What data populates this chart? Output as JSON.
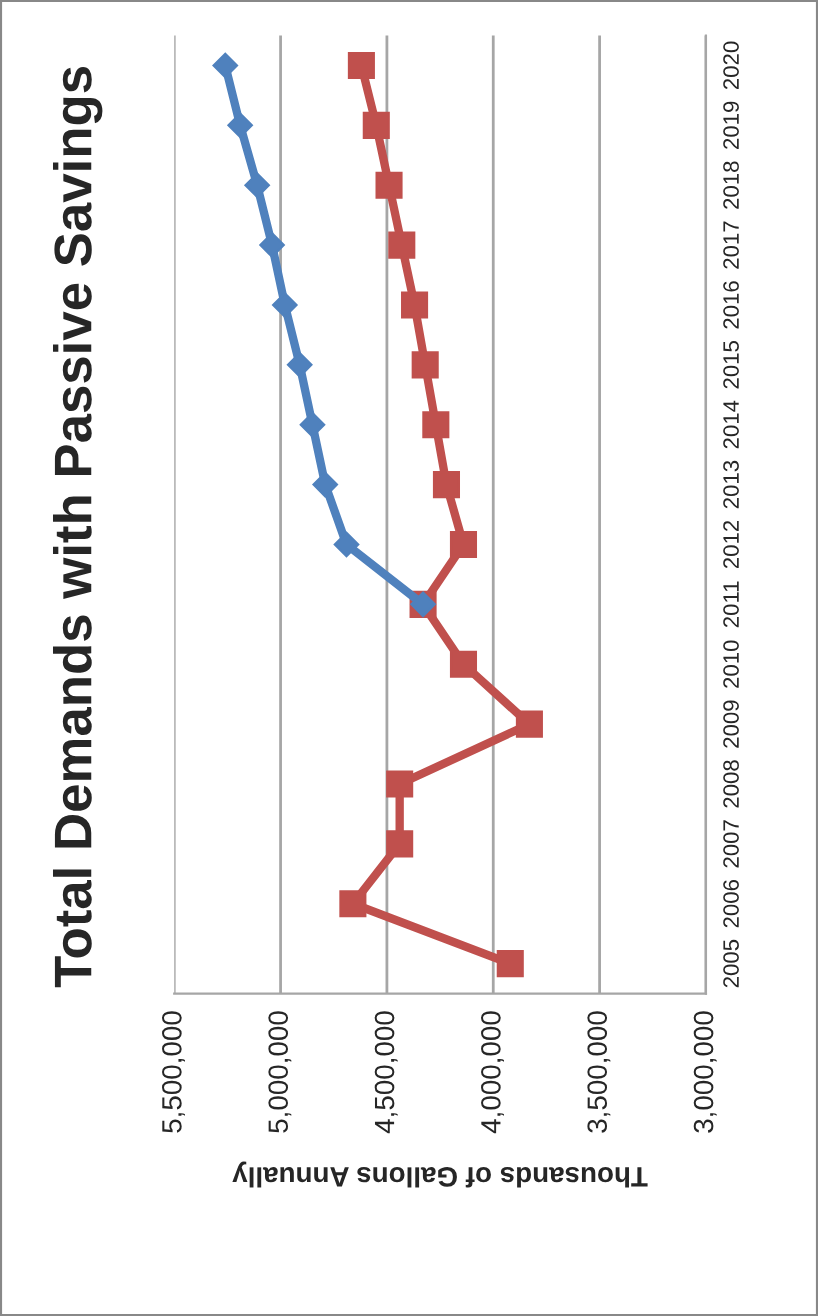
{
  "chart_data": {
    "type": "line",
    "orientation": "horizontal",
    "title": "Total Demands with Passive Savings",
    "xlabel": "Thousands of Gallons Annually",
    "categories": [
      "2020",
      "2019",
      "2018",
      "2017",
      "2016",
      "2015",
      "2014",
      "2013",
      "2012",
      "2011",
      "2010",
      "2009",
      "2008",
      "2007",
      "2006",
      "2005"
    ],
    "series": [
      {
        "color": "#c0504d",
        "marker": "square",
        "values": [
          4620000,
          4550000,
          4490000,
          4430000,
          4370000,
          4320000,
          4270000,
          4220000,
          4140000,
          4330000,
          4140000,
          3830000,
          4440000,
          4440000,
          4660000,
          3920000
        ]
      },
      {
        "color": "#4f81bd",
        "marker": "diamond",
        "values": [
          5260000,
          5190000,
          5110000,
          5040000,
          4980000,
          4910000,
          4850000,
          4790000,
          4690000,
          4330000,
          null,
          null,
          null,
          null,
          null,
          null
        ]
      }
    ],
    "xlim": [
      5500000,
      3000000
    ],
    "xticks": [
      {
        "value": 5500000,
        "label": "5,500,000"
      },
      {
        "value": 5000000,
        "label": "5,000,000"
      },
      {
        "value": 4500000,
        "label": "4,500,000"
      },
      {
        "value": 4000000,
        "label": "4,000,000"
      },
      {
        "value": 3500000,
        "label": "3,500,000"
      },
      {
        "value": 3000000,
        "label": "3,000,000"
      }
    ],
    "grid": "x",
    "legend": false,
    "line_style": "solid"
  }
}
